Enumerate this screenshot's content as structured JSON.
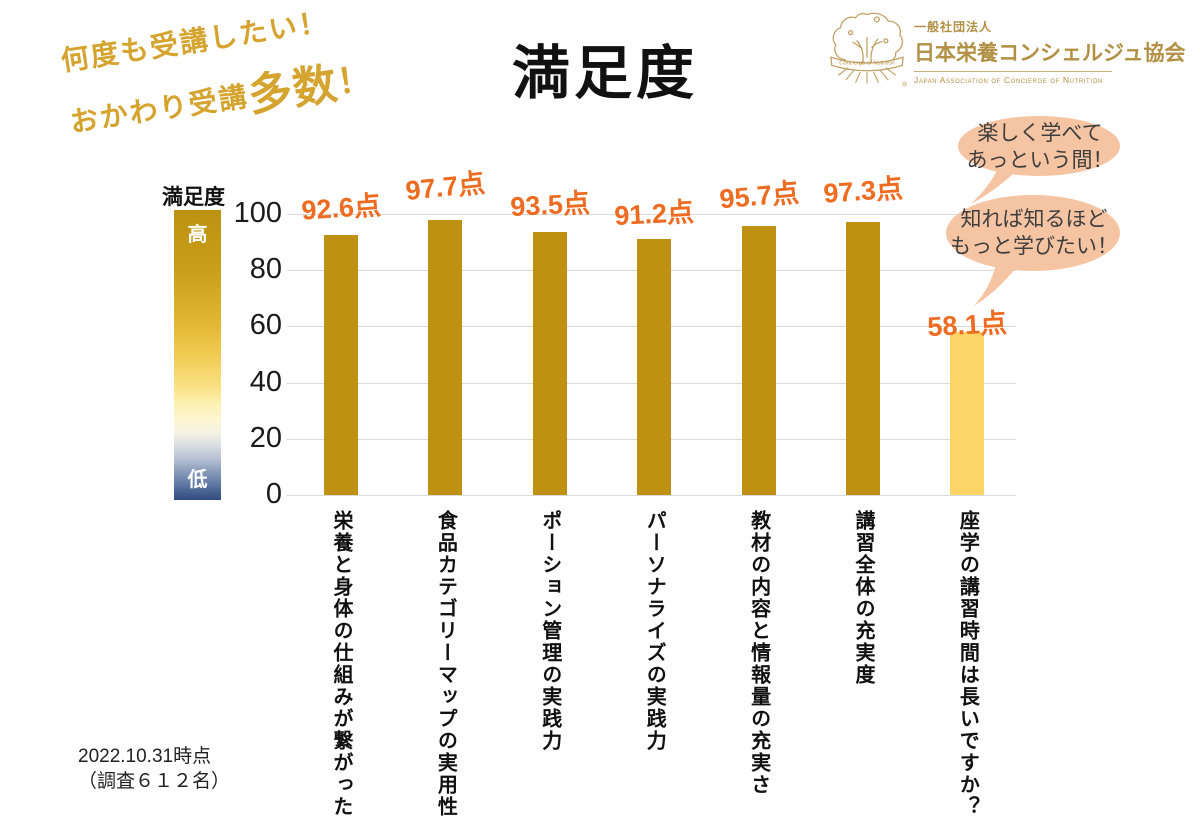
{
  "note": {
    "line1": "何度も受講したい！",
    "line2_prefix": "おかわり受講",
    "line2_big": "多数",
    "line2_bang": "！"
  },
  "title": "満足度",
  "logo": {
    "org_type": "一般社団法人",
    "org_name": "日本栄養コンシェルジュ協会",
    "org_name_en": "Japan Association of Concierge of Nutrition",
    "emblem_text": "Concierge of Nutrition",
    "registered_mark": "®"
  },
  "legend": {
    "title": "満足度",
    "high_label": "高",
    "low_label": "低"
  },
  "bubbles": [
    {
      "lines": [
        "楽しく学べて",
        "あっという間！"
      ]
    },
    {
      "lines": [
        "知れば知るほど",
        "もっと学びたい！"
      ]
    }
  ],
  "chart_data": {
    "type": "bar",
    "title": "満足度",
    "categories": [
      "栄養と身体の仕組みが繋がった",
      "食品カテゴリーマップの実用性",
      "ポーション管理の実践力",
      "パーソナライズの実践力",
      "教材の内容と情報量の充実さ",
      "講習全体の充実度",
      "座学の講習時間は長いですか？"
    ],
    "values": [
      92.6,
      97.7,
      93.5,
      91.2,
      95.7,
      97.3,
      58.1
    ],
    "value_labels": [
      "92.6点",
      "97.7点",
      "93.5点",
      "91.2点",
      "95.7点",
      "97.3点",
      "58.1点"
    ],
    "ylim": [
      0,
      100
    ],
    "yticks": [
      0,
      20,
      40,
      60,
      80,
      100
    ],
    "grid": "horizontal",
    "legend_position": "left",
    "bar_color_default": "#BE9113",
    "bar_color_last": "#FBD566",
    "value_label_color": "#ED6C21"
  },
  "colors": {
    "note_gold": "#D5A42F",
    "logo_gold": "#B29044",
    "bubble_fill": "#F5C4A2",
    "bubble_text": "#3E3E3E",
    "gridline": "#D9D9D9",
    "legend_top_gold": "#BC9110",
    "legend_bottom_navy": "#2F4C7E"
  },
  "footer": {
    "line1": "2022.10.31時点",
    "line2": "（調査６１２名）"
  }
}
